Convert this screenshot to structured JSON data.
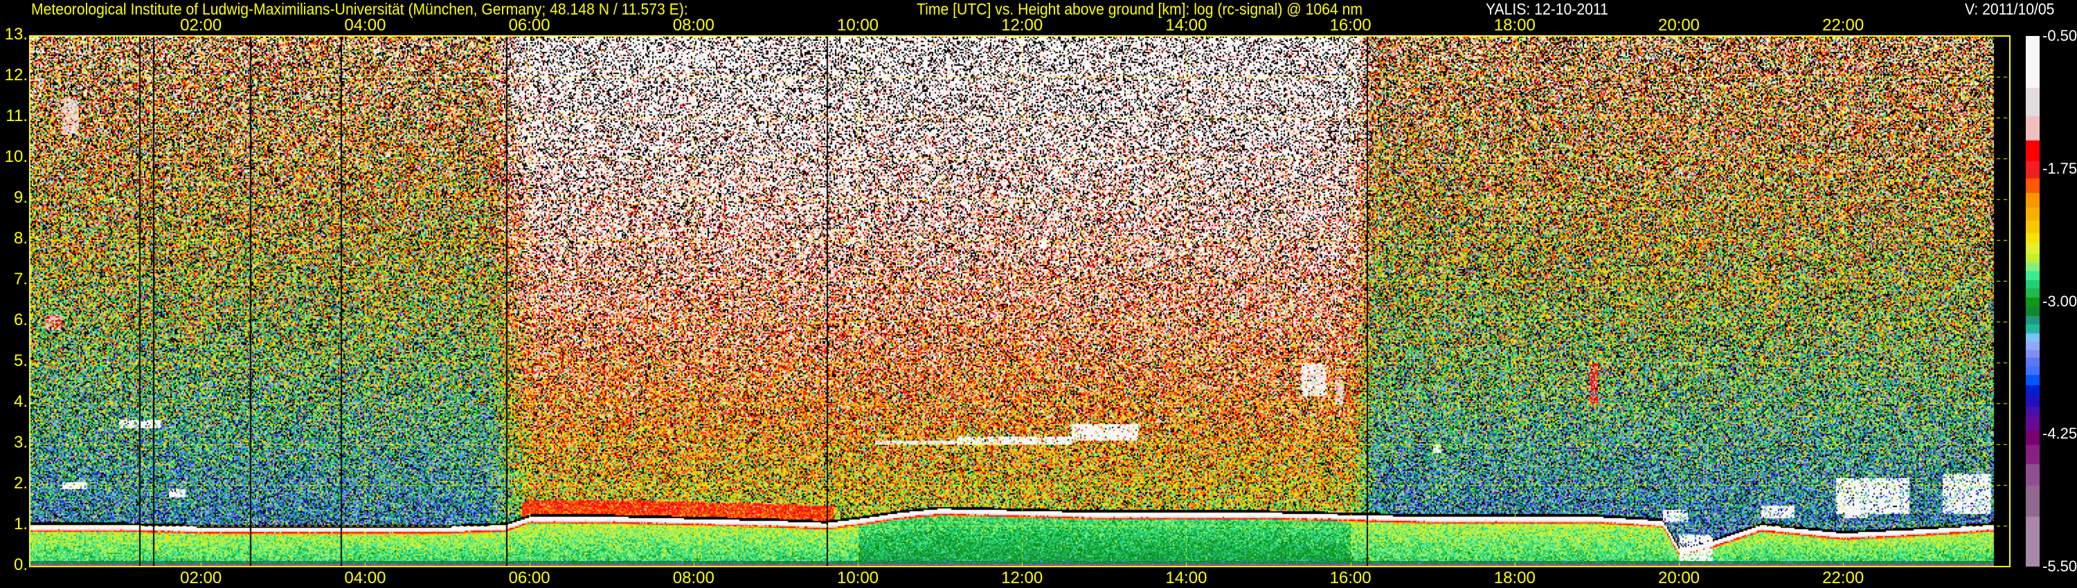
{
  "header": {
    "institute": "Meteorological Institute of Ludwig-Maximilians-Universität (München, Germany; 48.148 N / 11.573 E):",
    "description": "Time [UTC] vs. Height above ground [km]: log (rc-signal) @ 1064 nm",
    "instrument_date": "YALIS: 12-10-2011",
    "version": "V: 2011/10/05"
  },
  "chart_data": {
    "type": "heatmap",
    "title": "Time [UTC] vs. Height above ground [km]: log (rc-signal) @ 1064 nm",
    "xlabel": "Time [UTC]",
    "ylabel": "Height above ground [km]",
    "xlim_hours": [
      0,
      24
    ],
    "ylim": [
      0,
      13
    ],
    "x_ticks": [
      "02:00",
      "04:00",
      "06:00",
      "08:00",
      "10:00",
      "12:00",
      "14:00",
      "16:00",
      "18:00",
      "20:00",
      "22:00"
    ],
    "x_tick_hours": [
      2,
      4,
      6,
      8,
      10,
      12,
      14,
      16,
      18,
      20,
      22
    ],
    "y_ticks": [
      "13.",
      "12.",
      "11.",
      "10.",
      "9.",
      "8.",
      "7.",
      "6.",
      "5.",
      "4.",
      "3.",
      "2.",
      "1.",
      "0."
    ],
    "y_tick_values": [
      13,
      12,
      11,
      10,
      9,
      8,
      7,
      6,
      5,
      4,
      3,
      2,
      1,
      0
    ],
    "grid": true,
    "grid_color": "#ffff00",
    "colorbar": {
      "range": [
        -5.5,
        -0.5
      ],
      "ticks": [
        "-0.50",
        "-1.75",
        "-3.00",
        "-4.25",
        "-5.50"
      ],
      "tick_values": [
        -0.5,
        -1.75,
        -3.0,
        -4.25,
        -5.5
      ],
      "colors_top_to_bottom": [
        "#f8f8f8",
        "#e4dcdc",
        "#f0c0c0",
        "#ff0000",
        "#f02020",
        "#ff5800",
        "#f89800",
        "#f8b000",
        "#f8c800",
        "#f8e000",
        "#e0f030",
        "#c0f030",
        "#80f080",
        "#40e890",
        "#20d070",
        "#20b850",
        "#109810",
        "#108830",
        "#209880",
        "#20b8a0",
        "#80c0f8",
        "#90a8f8",
        "#8090f0",
        "#5878f8",
        "#4070f8",
        "#0058f8",
        "#0020d0",
        "#2010c0",
        "#4810a8",
        "#680898",
        "#780070",
        "#882080",
        "#905090",
        "#906890",
        "#a888a8"
      ]
    },
    "series": [
      {
        "x": [
          0,
          1,
          2,
          3,
          4,
          5,
          5.7,
          6,
          7,
          8,
          9,
          9.6,
          10,
          10.5,
          11,
          12,
          13,
          14,
          15,
          16,
          17,
          18,
          19,
          19.8,
          20,
          20.4,
          21,
          22,
          23,
          23.8
        ],
        "y": [
          1.0,
          1.0,
          0.95,
          0.95,
          0.95,
          0.95,
          1.0,
          1.2,
          1.2,
          1.15,
          1.1,
          1.05,
          1.15,
          1.3,
          1.4,
          1.35,
          1.3,
          1.3,
          1.3,
          1.25,
          1.2,
          1.2,
          1.2,
          1.1,
          0.4,
          0.6,
          1.0,
          0.8,
          0.9,
          1.0
        ]
      }
    ]
  }
}
